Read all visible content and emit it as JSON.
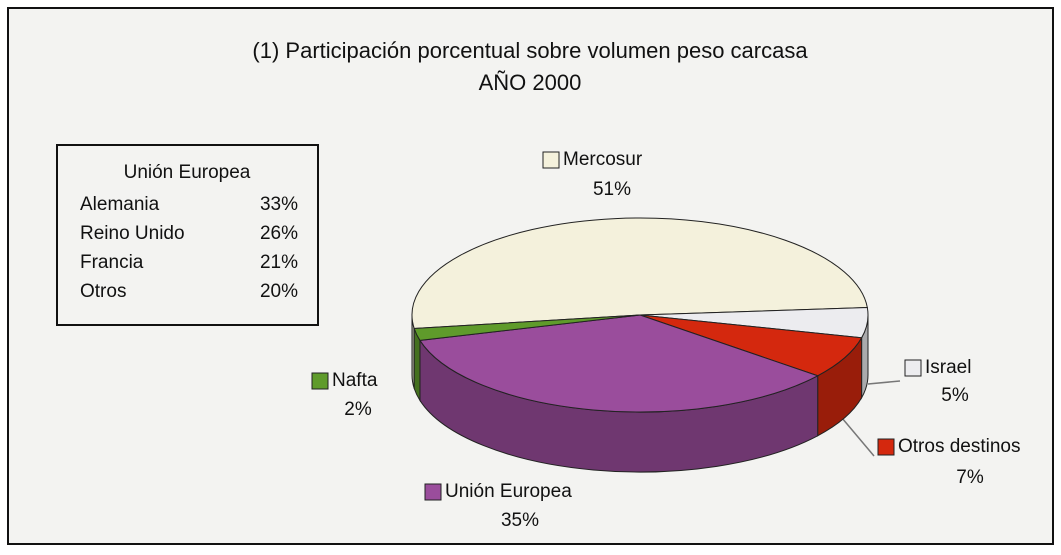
{
  "chart_data": {
    "type": "pie3d",
    "title": "(1) Participación porcentual sobre volumen peso carcasa",
    "subtitle": "AÑO 2000",
    "categories": [
      "Mercosur",
      "Israel",
      "Otros destinos",
      "Unión Europea",
      "Nafta"
    ],
    "values": [
      51,
      5,
      7,
      35,
      2
    ],
    "value_labels": [
      "51%",
      "5%",
      "7%",
      "35%",
      "2%"
    ],
    "colors": [
      "#f4f1dc",
      "#ececef",
      "#d4280e",
      "#9a4d9c",
      "#5f9b2b"
    ],
    "inset": {
      "title": "Unión Europea",
      "categories": [
        "Alemania",
        "Reino Unido",
        "Francia",
        "Otros"
      ],
      "values": [
        33,
        26,
        21,
        20
      ],
      "value_labels": [
        "33%",
        "26%",
        "21%",
        "20%"
      ]
    }
  }
}
